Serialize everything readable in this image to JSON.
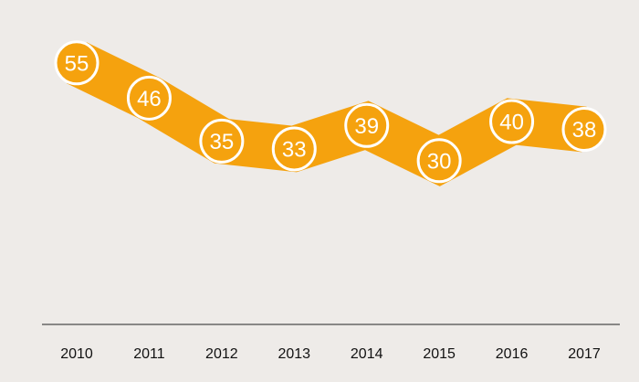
{
  "chart_data": {
    "type": "line",
    "categories": [
      "2010",
      "2011",
      "2012",
      "2013",
      "2014",
      "2015",
      "2016",
      "2017"
    ],
    "values": [
      55,
      46,
      35,
      33,
      39,
      30,
      40,
      38
    ],
    "title": "",
    "xlabel": "",
    "ylabel": "",
    "ylim": [
      0,
      60
    ],
    "grid": false,
    "data_labels": true,
    "colors": {
      "background": "#eeebe8",
      "line": "#f5a20e",
      "marker_fill": "#f5a20e",
      "marker_stroke": "#ffffff",
      "axis": "#666666",
      "tick_text": "#111111",
      "label_text": "#ffffff"
    }
  }
}
